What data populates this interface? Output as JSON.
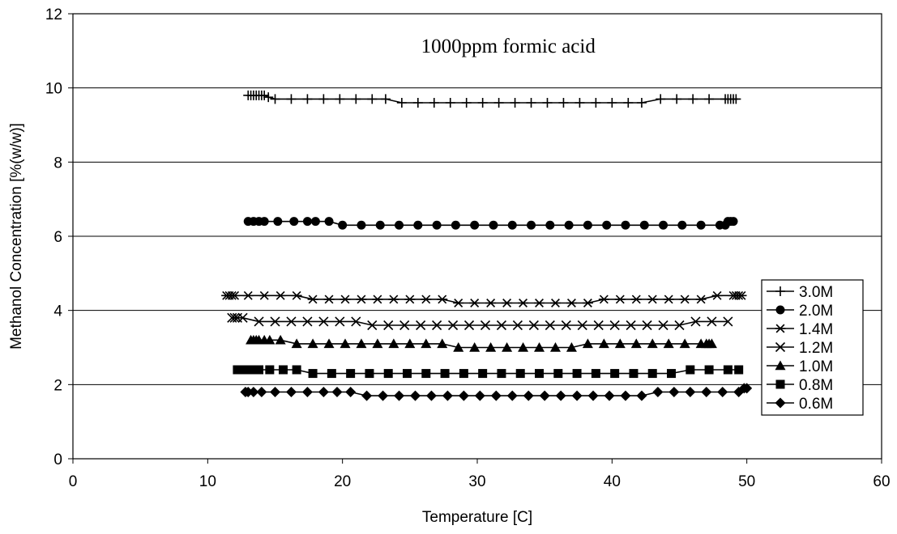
{
  "chart_data": {
    "type": "line",
    "title": "",
    "annotation": "1000ppm formic acid",
    "xlabel": "Temperature [C]",
    "ylabel": "Methanol Concentration [%(w/w)]",
    "xlim": [
      0,
      60
    ],
    "ylim": [
      0,
      12
    ],
    "xticks": [
      "0",
      "10",
      "20",
      "30",
      "40",
      "50",
      "60"
    ],
    "yticks": [
      "0",
      "2",
      "4",
      "6",
      "8",
      "10",
      "12"
    ],
    "grid": "horizontal",
    "legend_position": "right",
    "series": [
      {
        "name": "3.0M",
        "marker": "plus",
        "x": [
          13.0,
          13.2,
          13.4,
          13.6,
          13.8,
          14.0,
          14.2,
          14.5,
          15.0,
          16.2,
          17.4,
          18.6,
          19.8,
          21.0,
          22.2,
          23.2,
          24.4,
          25.6,
          26.8,
          28.0,
          29.2,
          30.4,
          31.6,
          32.8,
          34.0,
          35.2,
          36.4,
          37.6,
          38.8,
          40.0,
          41.2,
          42.2,
          43.6,
          44.8,
          46.0,
          47.2,
          48.4,
          48.6,
          48.8,
          49.0,
          49.2
        ],
        "y": [
          9.8,
          9.8,
          9.8,
          9.8,
          9.8,
          9.8,
          9.8,
          9.75,
          9.7,
          9.7,
          9.7,
          9.7,
          9.7,
          9.7,
          9.7,
          9.7,
          9.6,
          9.6,
          9.6,
          9.6,
          9.6,
          9.6,
          9.6,
          9.6,
          9.6,
          9.6,
          9.6,
          9.6,
          9.6,
          9.6,
          9.6,
          9.6,
          9.7,
          9.7,
          9.7,
          9.7,
          9.7,
          9.7,
          9.7,
          9.7,
          9.7
        ]
      },
      {
        "name": "2.0M",
        "marker": "circle",
        "x": [
          13.0,
          13.4,
          13.8,
          14.2,
          15.2,
          16.4,
          17.4,
          18.0,
          19.0,
          20.0,
          21.4,
          22.8,
          24.2,
          25.6,
          27.0,
          28.4,
          29.8,
          31.2,
          32.6,
          34.0,
          35.4,
          36.8,
          38.2,
          39.6,
          41.0,
          42.4,
          43.8,
          45.2,
          46.6,
          48.0,
          48.4,
          48.6,
          48.8,
          49.0
        ],
        "y": [
          6.4,
          6.4,
          6.4,
          6.4,
          6.4,
          6.4,
          6.4,
          6.4,
          6.4,
          6.3,
          6.3,
          6.3,
          6.3,
          6.3,
          6.3,
          6.3,
          6.3,
          6.3,
          6.3,
          6.3,
          6.3,
          6.3,
          6.3,
          6.3,
          6.3,
          6.3,
          6.3,
          6.3,
          6.3,
          6.3,
          6.3,
          6.4,
          6.4,
          6.4
        ]
      },
      {
        "name": "1.4M",
        "marker": "asterisk",
        "x": [
          11.4,
          11.6,
          11.8,
          12.0,
          13.0,
          14.2,
          15.4,
          16.6,
          17.8,
          19.0,
          20.2,
          21.4,
          22.6,
          23.8,
          25.0,
          26.2,
          27.4,
          28.6,
          29.8,
          31.0,
          32.2,
          33.4,
          34.6,
          35.8,
          37.0,
          38.2,
          39.4,
          40.6,
          41.8,
          43.0,
          44.2,
          45.4,
          46.6,
          47.8,
          49.0,
          49.2,
          49.4,
          49.6
        ],
        "y": [
          4.4,
          4.4,
          4.4,
          4.4,
          4.4,
          4.4,
          4.4,
          4.4,
          4.3,
          4.3,
          4.3,
          4.3,
          4.3,
          4.3,
          4.3,
          4.3,
          4.3,
          4.2,
          4.2,
          4.2,
          4.2,
          4.2,
          4.2,
          4.2,
          4.2,
          4.2,
          4.3,
          4.3,
          4.3,
          4.3,
          4.3,
          4.3,
          4.3,
          4.4,
          4.4,
          4.4,
          4.4,
          4.4
        ]
      },
      {
        "name": "1.2M",
        "marker": "x",
        "x": [
          11.8,
          12.0,
          12.2,
          12.6,
          13.8,
          15.0,
          16.2,
          17.4,
          18.6,
          19.8,
          21.0,
          22.2,
          23.4,
          24.6,
          25.8,
          27.0,
          28.2,
          29.4,
          30.6,
          31.8,
          33.0,
          34.2,
          35.4,
          36.6,
          37.8,
          39.0,
          40.2,
          41.4,
          42.6,
          43.8,
          45.0,
          46.2,
          47.4,
          48.6
        ],
        "y": [
          3.8,
          3.8,
          3.8,
          3.8,
          3.7,
          3.7,
          3.7,
          3.7,
          3.7,
          3.7,
          3.7,
          3.6,
          3.6,
          3.6,
          3.6,
          3.6,
          3.6,
          3.6,
          3.6,
          3.6,
          3.6,
          3.6,
          3.6,
          3.6,
          3.6,
          3.6,
          3.6,
          3.6,
          3.6,
          3.6,
          3.6,
          3.7,
          3.7,
          3.7
        ]
      },
      {
        "name": "1.0M",
        "marker": "triangle",
        "x": [
          13.2,
          13.4,
          13.6,
          13.8,
          14.2,
          14.6,
          15.4,
          16.6,
          17.8,
          19.0,
          20.2,
          21.4,
          22.6,
          23.8,
          25.0,
          26.2,
          27.4,
          28.6,
          29.8,
          31.0,
          32.2,
          33.4,
          34.6,
          35.8,
          37.0,
          38.2,
          39.4,
          40.6,
          41.8,
          43.0,
          44.2,
          45.4,
          46.6,
          47.0,
          47.2,
          47.4
        ],
        "y": [
          3.2,
          3.2,
          3.2,
          3.2,
          3.2,
          3.2,
          3.2,
          3.1,
          3.1,
          3.1,
          3.1,
          3.1,
          3.1,
          3.1,
          3.1,
          3.1,
          3.1,
          3.0,
          3.0,
          3.0,
          3.0,
          3.0,
          3.0,
          3.0,
          3.0,
          3.1,
          3.1,
          3.1,
          3.1,
          3.1,
          3.1,
          3.1,
          3.1,
          3.1,
          3.1,
          3.1
        ]
      },
      {
        "name": "0.8M",
        "marker": "square",
        "x": [
          12.2,
          12.4,
          12.8,
          13.2,
          13.8,
          14.6,
          15.6,
          16.6,
          17.8,
          19.2,
          20.6,
          22.0,
          23.4,
          24.8,
          26.2,
          27.6,
          29.0,
          30.4,
          31.8,
          33.2,
          34.6,
          36.0,
          37.4,
          38.8,
          40.2,
          41.6,
          43.0,
          44.4,
          45.8,
          47.2,
          48.6,
          49.4
        ],
        "y": [
          2.4,
          2.4,
          2.4,
          2.4,
          2.4,
          2.4,
          2.4,
          2.4,
          2.3,
          2.3,
          2.3,
          2.3,
          2.3,
          2.3,
          2.3,
          2.3,
          2.3,
          2.3,
          2.3,
          2.3,
          2.3,
          2.3,
          2.3,
          2.3,
          2.3,
          2.3,
          2.3,
          2.3,
          2.4,
          2.4,
          2.4,
          2.4
        ]
      },
      {
        "name": "0.6M",
        "marker": "diamond",
        "x": [
          12.8,
          13.0,
          13.4,
          14.0,
          15.0,
          16.2,
          17.4,
          18.6,
          19.6,
          20.6,
          21.8,
          23.0,
          24.2,
          25.4,
          26.6,
          27.8,
          29.0,
          30.2,
          31.4,
          32.6,
          33.8,
          35.0,
          36.2,
          37.4,
          38.6,
          39.8,
          41.0,
          42.2,
          43.4,
          44.6,
          45.8,
          47.0,
          48.2,
          49.4,
          49.8,
          50.0
        ],
        "y": [
          1.8,
          1.8,
          1.8,
          1.8,
          1.8,
          1.8,
          1.8,
          1.8,
          1.8,
          1.8,
          1.7,
          1.7,
          1.7,
          1.7,
          1.7,
          1.7,
          1.7,
          1.7,
          1.7,
          1.7,
          1.7,
          1.7,
          1.7,
          1.7,
          1.7,
          1.7,
          1.7,
          1.7,
          1.8,
          1.8,
          1.8,
          1.8,
          1.8,
          1.8,
          1.9,
          1.9
        ]
      }
    ]
  }
}
